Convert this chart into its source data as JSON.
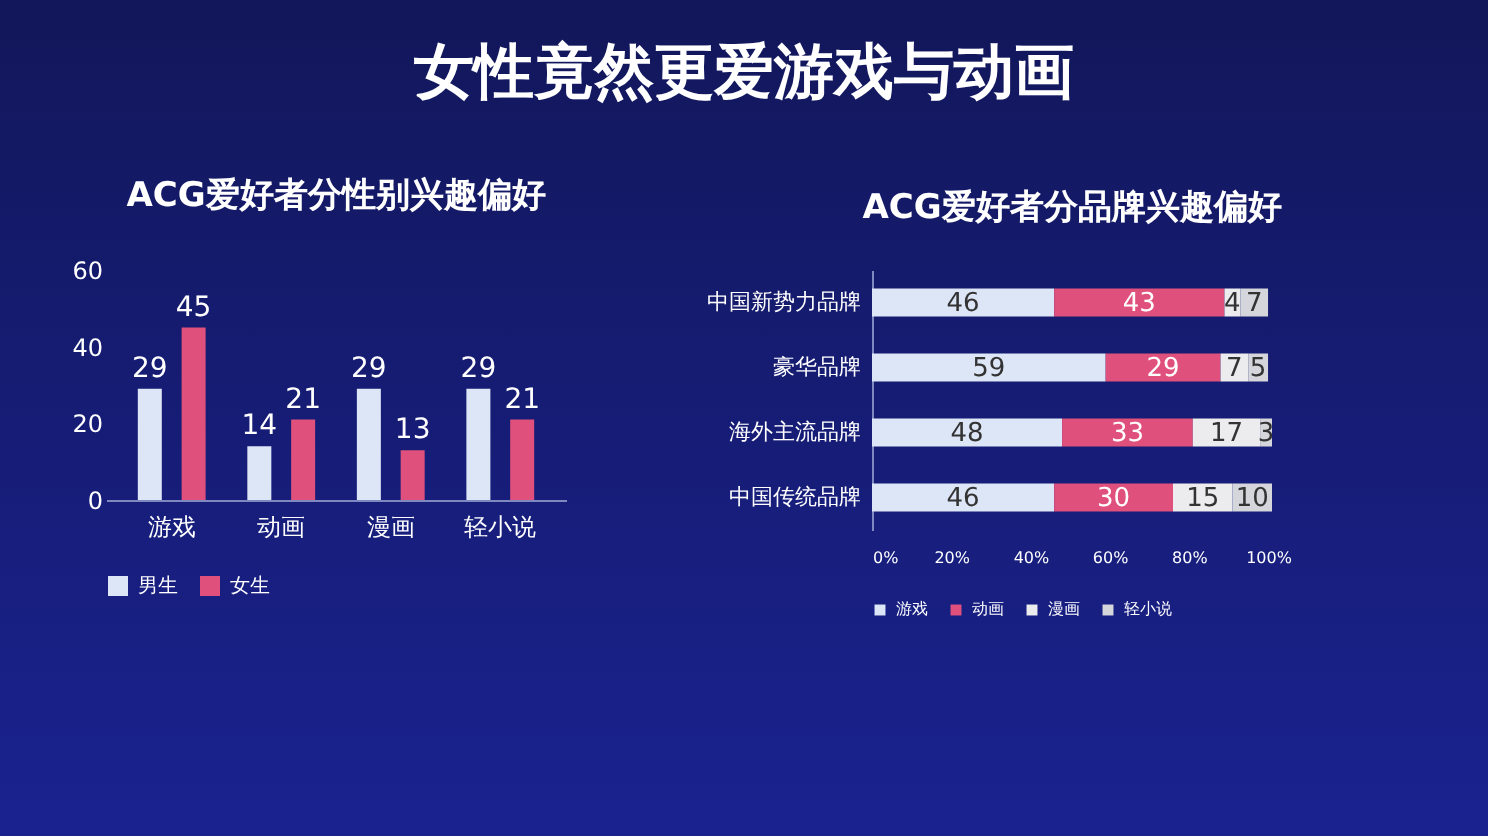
{
  "chart_data": [
    {
      "type": "bar",
      "title": "ACG爱好者分性别兴趣偏好",
      "annotations": [
        "女性竟然更爱游戏与动画"
      ],
      "categories": [
        "游戏",
        "动画",
        "漫画",
        "轻小说"
      ],
      "series": [
        {
          "name": "男生",
          "color": "#dde6f6",
          "values": [
            29,
            14,
            29,
            29
          ]
        },
        {
          "name": "女生",
          "color": "#e0507c",
          "values": [
            45,
            21,
            13,
            21
          ]
        }
      ],
      "ylim": [
        0,
        60
      ],
      "yticks": [
        0,
        20,
        40,
        60
      ],
      "data_labels": true,
      "legend": "bottom"
    },
    {
      "type": "bar",
      "title": "ACG爱好者分品牌兴趣偏好",
      "orientation": "horizontal",
      "stacked": true,
      "categories": [
        "中国新势力品牌",
        "豪华品牌",
        "海外主流品牌",
        "中国传统品牌"
      ],
      "series": [
        {
          "name": "游戏",
          "color": "#dde6f6",
          "values": [
            46,
            59,
            48,
            46
          ]
        },
        {
          "name": "动画",
          "color": "#e0507c",
          "values": [
            43,
            29,
            33,
            30
          ]
        },
        {
          "name": "漫画",
          "color": "#ececee",
          "values": [
            4,
            7,
            17,
            15
          ]
        },
        {
          "name": "轻小说",
          "color": "#d4d6dc",
          "values": [
            7,
            5,
            3,
            10
          ]
        }
      ],
      "xlim": [
        0,
        101
      ],
      "xticks": [
        {
          "value": 0,
          "label": "0%"
        },
        {
          "value": 20,
          "label": "20%"
        },
        {
          "value": 40,
          "label": "40%"
        },
        {
          "value": 60,
          "label": "60%"
        },
        {
          "value": 80,
          "label": "80%"
        },
        {
          "value": 100,
          "label": "100%"
        }
      ],
      "data_labels": true,
      "legend": "bottom"
    }
  ]
}
